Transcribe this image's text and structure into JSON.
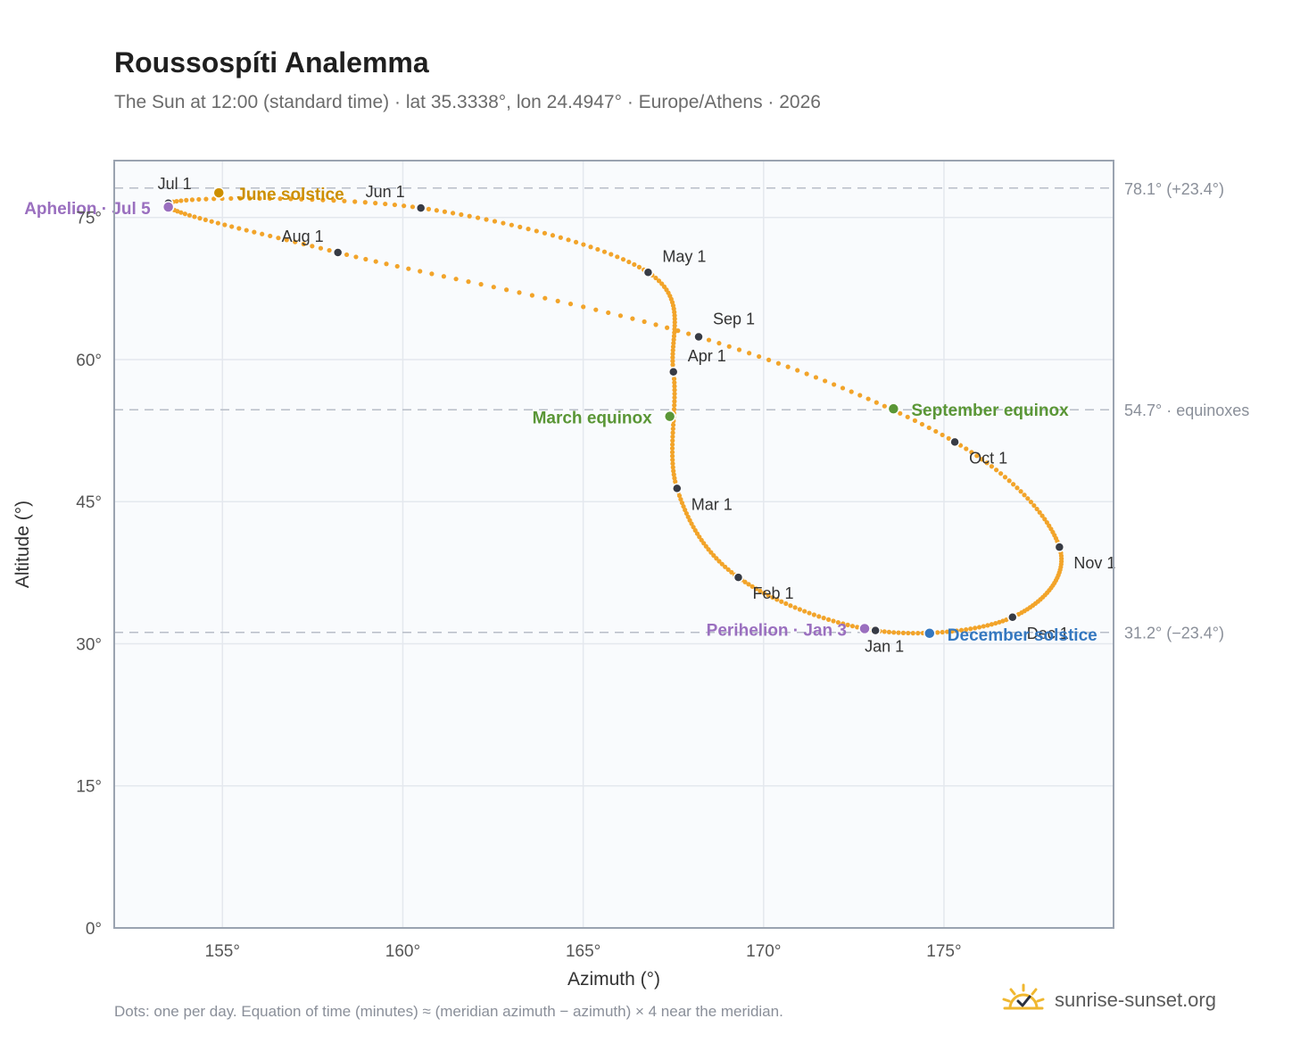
{
  "header": {
    "title": "Roussospíti Analemma",
    "subtitle": "The Sun at 12:00 (standard time) · lat 35.3338°, lon 24.4947° · Europe/Athens · 2026"
  },
  "footer": {
    "note": "Dots: one per day. Equation of time (minutes) ≈ (meridian azimuth − azimuth) × 4 near the meridian.",
    "brand": "sunrise-sunset.org",
    "brand_icon": "sun-icon"
  },
  "colors": {
    "curve": "#f2a42a",
    "month_marker": "#373b45",
    "june_solstice": "#cc8f00",
    "december_solstice": "#3578c0",
    "equinox": "#5a9636",
    "apsis": "#9a6fbf",
    "reference_line": "#b8bec8",
    "plot_background": "#f9fbfd",
    "grid": "#e4e8ee",
    "frame": "#9aa3b0"
  },
  "chart_data": {
    "type": "scatter",
    "xlabel": "Azimuth (°)",
    "ylabel": "Altitude (°)",
    "xlim": [
      152,
      179.7
    ],
    "ylim": [
      0,
      81
    ],
    "x_ticks": [
      155,
      160,
      165,
      170,
      175
    ],
    "x_tick_labels": [
      "155°",
      "160°",
      "165°",
      "170°",
      "175°"
    ],
    "y_ticks": [
      0,
      15,
      30,
      45,
      60,
      75
    ],
    "y_tick_labels": [
      "0°",
      "15°",
      "30°",
      "45°",
      "60°",
      "75°"
    ],
    "grid": true,
    "series": [
      {
        "description_of_series": "one dot per day",
        "marker": "dot",
        "points": [
          [
            173.1,
            31.4
          ],
          [
            169.3,
            37.0
          ],
          [
            167.6,
            46.4
          ],
          [
            167.5,
            58.7
          ],
          [
            166.8,
            69.2
          ],
          [
            160.5,
            76.0
          ],
          [
            153.5,
            76.5
          ],
          [
            158.2,
            71.3
          ],
          [
            168.2,
            62.4
          ],
          [
            175.3,
            51.3
          ],
          [
            178.2,
            40.2
          ],
          [
            176.9,
            32.8
          ],
          [
            173.1,
            31.4
          ]
        ]
      }
    ],
    "month_markers": [
      {
        "label": "Jan 1",
        "az": 173.1,
        "alt": 31.4
      },
      {
        "label": "Feb 1",
        "az": 169.3,
        "alt": 37.0
      },
      {
        "label": "Mar 1",
        "az": 167.6,
        "alt": 46.4
      },
      {
        "label": "Apr 1",
        "az": 167.5,
        "alt": 58.7
      },
      {
        "label": "May 1",
        "az": 166.8,
        "alt": 69.2
      },
      {
        "label": "Jun 1",
        "az": 160.5,
        "alt": 76.0
      },
      {
        "label": "Jul 1",
        "az": 153.5,
        "alt": 76.5
      },
      {
        "label": "Aug 1",
        "az": 158.2,
        "alt": 71.3
      },
      {
        "label": "Sep 1",
        "az": 168.2,
        "alt": 62.4
      },
      {
        "label": "Oct 1",
        "az": 175.3,
        "alt": 51.3
      },
      {
        "label": "Nov 1",
        "az": 178.2,
        "alt": 40.2
      },
      {
        "label": "Dec 1",
        "az": 176.9,
        "alt": 32.8
      }
    ],
    "events": [
      {
        "label": "June solstice",
        "az": 154.9,
        "alt": 77.6,
        "color_key": "june_solstice"
      },
      {
        "label": "December solstice",
        "az": 174.6,
        "alt": 31.1,
        "color_key": "december_solstice"
      },
      {
        "label": "March equinox",
        "az": 167.4,
        "alt": 54.0,
        "color_key": "equinox"
      },
      {
        "label": "September equinox",
        "az": 173.6,
        "alt": 54.8,
        "color_key": "equinox"
      },
      {
        "label": "Aphelion · Jul 5",
        "az": 153.5,
        "alt": 76.1,
        "color_key": "apsis"
      },
      {
        "label": "Perihelion · Jan 3",
        "az": 172.8,
        "alt": 31.6,
        "color_key": "apsis"
      }
    ],
    "reference_lines": [
      {
        "alt": 78.1,
        "label": "78.1° (+23.4°)"
      },
      {
        "alt": 54.7,
        "label": "54.7° · equinoxes"
      },
      {
        "alt": 31.2,
        "label": "31.2° (−23.4°)"
      }
    ]
  }
}
